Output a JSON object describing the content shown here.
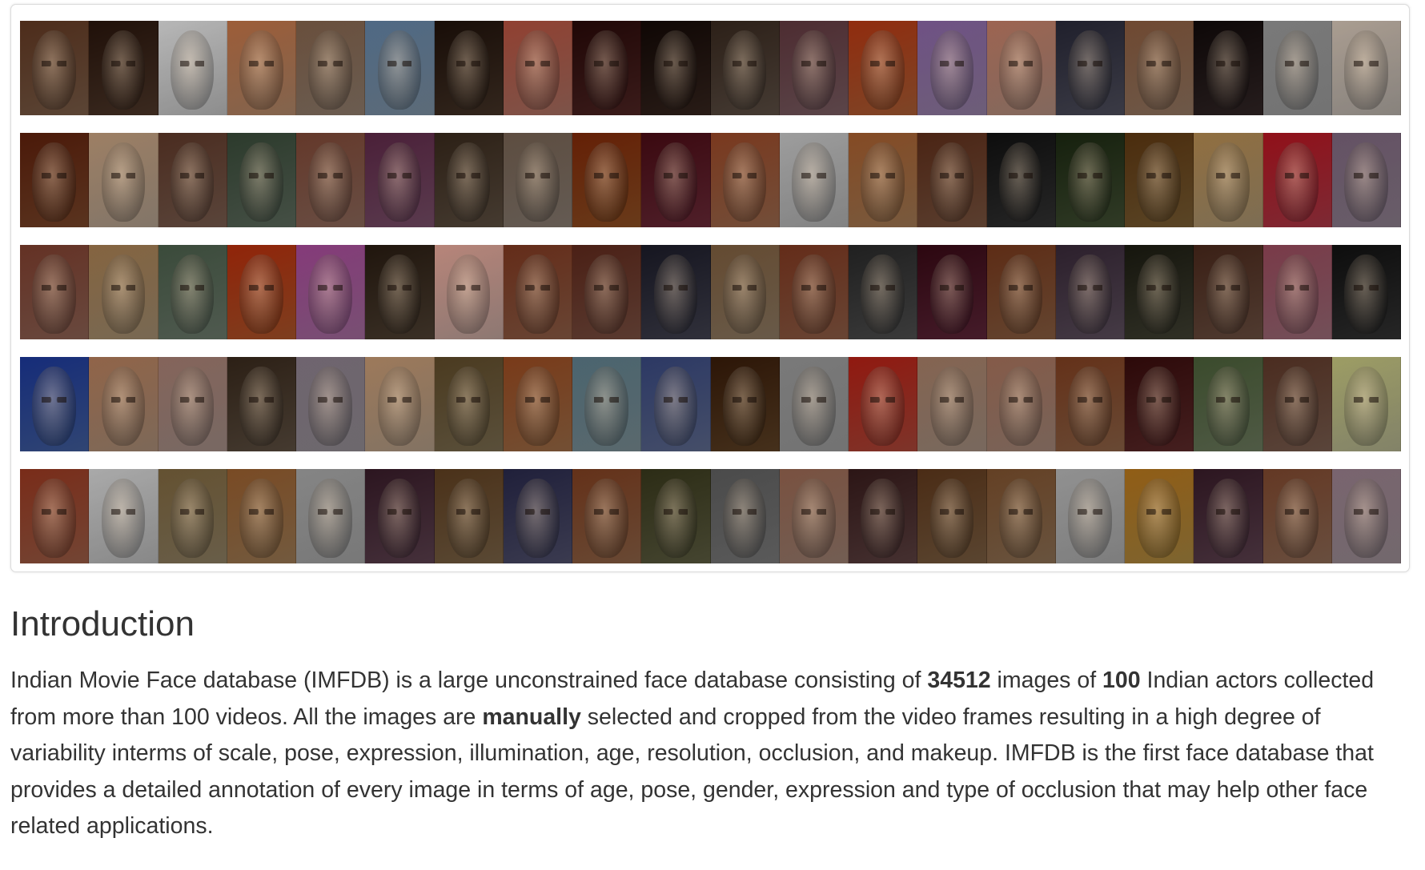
{
  "mosaic": {
    "rows": [
      {
        "faces": [
          "#8c6a52",
          "#5a4030",
          "#d8d8d8",
          "#c89a78",
          "#a48e7c",
          "#8ea4b8",
          "#4e3a2c",
          "#c08070",
          "#5a2a28",
          "#3e2a22",
          "#6a5a4e",
          "#8c6a70",
          "#c06a3c",
          "#a890b8",
          "#c8a090",
          "#5a5a6a",
          "#a88870",
          "#3a2c2c",
          "#b0b0b0",
          "#d0c8c0"
        ]
      },
      {
        "faces": [
          "#8a5030",
          "#c8b4a0",
          "#8a6a5a",
          "#6a7a6a",
          "#a07868",
          "#8a5a78",
          "#6a5a4a",
          "#9a8c80",
          "#a05a28",
          "#7a3040",
          "#b07858",
          "#c8c8c8",
          "#b88a60",
          "#8a6048",
          "#3a3a3a",
          "#4a5a3a",
          "#8a6a3a",
          "#c0a880",
          "#c04050",
          "#a090a0"
        ]
      },
      {
        "faces": [
          "#a07060",
          "#b8a080",
          "#7a8a7a",
          "#c06030",
          "#b87ab0",
          "#5a4a3a",
          "#d8b8b0",
          "#a06a50",
          "#8a5a4a",
          "#4a4a5a",
          "#a08a70",
          "#a06a50",
          "#5a5a5a",
          "#6a2a40",
          "#9a6a4a",
          "#6a5a6a",
          "#4a4a3a",
          "#7a5a4a",
          "#b07a88",
          "#3a3a3a"
        ]
      },
      {
        "faces": [
          "#4a6ab0",
          "#c0a088",
          "#b8a098",
          "#6a5a4a",
          "#a8a0a8",
          "#c8b098",
          "#8a7a5a",
          "#b07a50",
          "#8aa0a8",
          "#6a78a0",
          "#6a4a2a",
          "#b0b0b0",
          "#c05040",
          "#b8a090",
          "#b89888",
          "#a07050",
          "#6a3030",
          "#7a8a6a",
          "#8a6a5a",
          "#c8c8a0"
        ]
      },
      {
        "faces": [
          "#b06a50",
          "#d0d0d0",
          "#a09070",
          "#b08a60",
          "#b8b8b8",
          "#6a4a5a",
          "#8a7050",
          "#5a5a7a",
          "#a07050",
          "#6a6a4a",
          "#8a8a8a",
          "#b09080",
          "#6a4a4a",
          "#8a6a4a",
          "#a08060",
          "#c0c0c0",
          "#c09a4a",
          "#6a4a5a",
          "#a07860",
          "#b0a0a8"
        ]
      }
    ]
  },
  "intro": {
    "title": "Introduction",
    "p1": "Indian Movie Face database (IMFDB) is a large unconstrained face database consisting of ",
    "images_count": "34512",
    "p2": " images of ",
    "actors_count": "100",
    "p3": " Indian actors collected from more than 100 videos. All the images are ",
    "manually": "manually",
    "p4": " selected and cropped from the video frames resulting in a high degree of variability interms of scale, pose, expression, illumination, age, resolution, occlusion, and makeup. IMFDB is the first face database that provides a detailed annotation of every image in terms of age, pose, gender, expression and type of occlusion that may help other face related applications."
  }
}
